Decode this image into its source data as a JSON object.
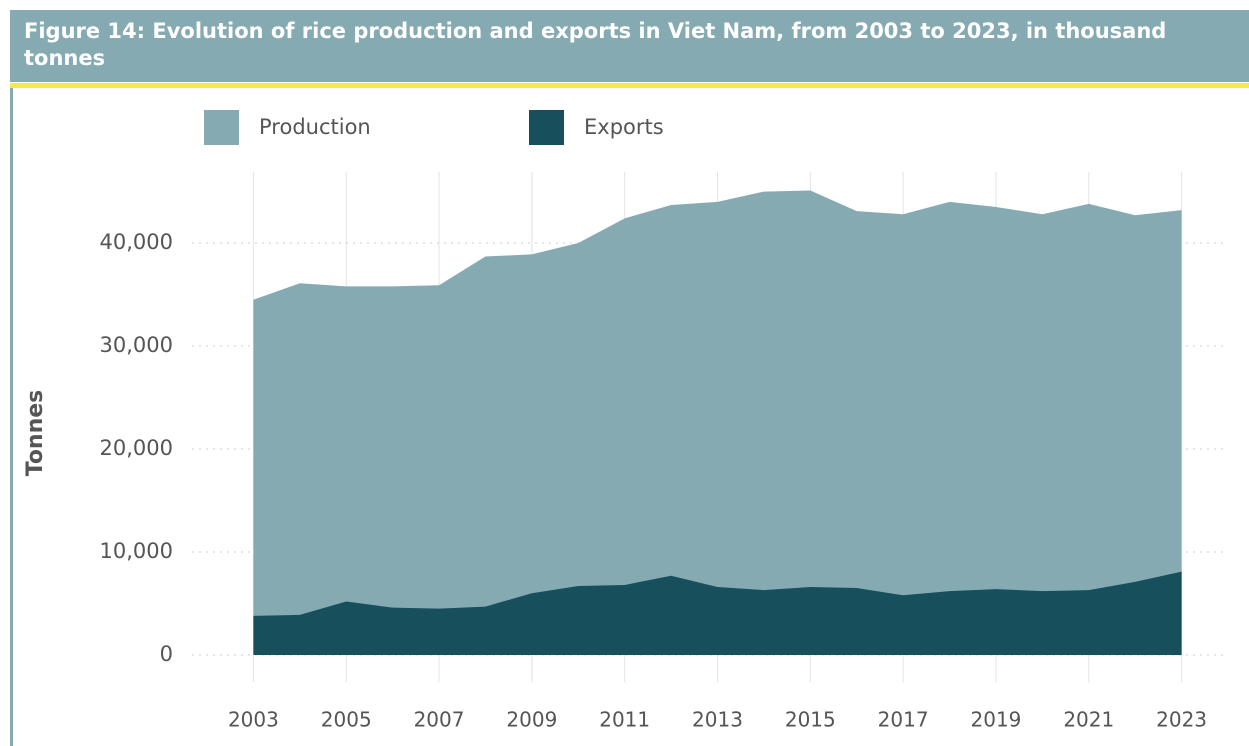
{
  "chart_data": {
    "type": "area",
    "title": "Figure 14: Evolution of rice production and exports in Viet Nam, from 2003 to 2023, in thousand tonnes",
    "y_label": "Tonnes",
    "x": [
      2003,
      2004,
      2005,
      2006,
      2007,
      2008,
      2009,
      2010,
      2011,
      2012,
      2013,
      2014,
      2015,
      2016,
      2017,
      2018,
      2019,
      2020,
      2021,
      2022,
      2023
    ],
    "series": [
      {
        "name": "Production",
        "color": "#86aab1",
        "values": [
          34500,
          36100,
          35800,
          35800,
          35900,
          38700,
          38900,
          40000,
          42400,
          43700,
          44000,
          45000,
          45100,
          43100,
          42800,
          44000,
          43500,
          42800,
          43800,
          42700,
          43200
        ]
      },
      {
        "name": "Exports",
        "color": "#184f5c",
        "values": [
          3800,
          3900,
          5200,
          4600,
          4500,
          4700,
          6000,
          6700,
          6800,
          7700,
          6600,
          6300,
          6600,
          6500,
          5800,
          6200,
          6400,
          6200,
          6300,
          7100,
          8100
        ]
      }
    ],
    "xlim": [
      2002,
      2024
    ],
    "xticks": [
      2003,
      2005,
      2007,
      2009,
      2011,
      2013,
      2015,
      2017,
      2019,
      2021,
      2023
    ],
    "ylim": [
      0,
      46900
    ],
    "yticks": [
      0,
      {
        "value": 10000,
        "label": "10,000"
      },
      {
        "value": 20000,
        "label": "20,000"
      },
      {
        "value": 30000,
        "label": "30,000"
      },
      {
        "value": 40000,
        "label": "40,000"
      }
    ],
    "grid": true
  }
}
